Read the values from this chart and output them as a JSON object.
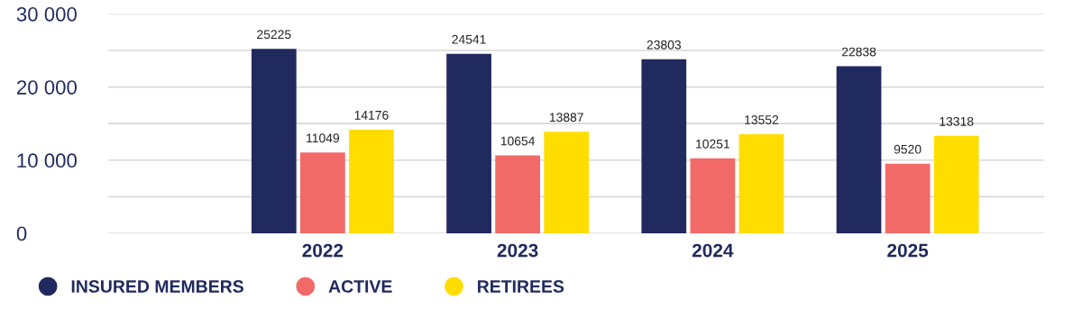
{
  "chart_data": {
    "type": "bar",
    "categories": [
      "2022",
      "2023",
      "2024",
      "2025"
    ],
    "series": [
      {
        "name": "INSURED MEMBERS",
        "color": "#212a5e",
        "values": [
          25225,
          24541,
          23803,
          22838
        ]
      },
      {
        "name": "ACTIVE",
        "color": "#f26a67",
        "values": [
          11049,
          10654,
          10251,
          9520
        ]
      },
      {
        "name": "RETIREES",
        "color": "#ffdd00",
        "values": [
          14176,
          13887,
          13552,
          13318
        ]
      }
    ],
    "ylim": [
      0,
      30000
    ],
    "yticks": [
      {
        "value": 0,
        "label": "0"
      },
      {
        "value": 5000,
        "label": null
      },
      {
        "value": 10000,
        "label": "10 000"
      },
      {
        "value": 15000,
        "label": null
      },
      {
        "value": 20000,
        "label": "20 000"
      },
      {
        "value": 25000,
        "label": null
      },
      {
        "value": 30000,
        "label": "30 000"
      }
    ],
    "grid": "y",
    "data_labels": true,
    "legend": "bottom left"
  }
}
